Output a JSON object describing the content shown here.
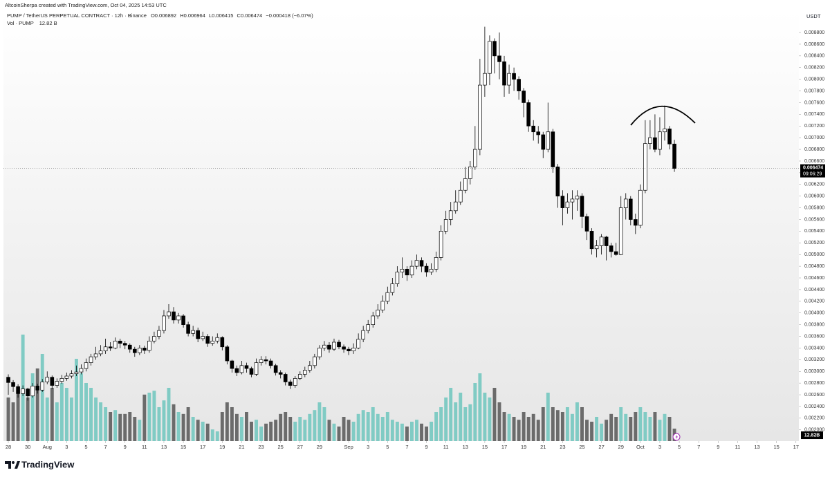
{
  "header": {
    "credit": "AltcoinSherpa created with TradingView.com, Oct 04, 2025 14:53 UTC",
    "symbol": "PUMP / TetherUS PERPETUAL CONTRACT · 12h · Binance",
    "open": "O0.006892",
    "high": "H0.006964",
    "low": "L0.006415",
    "close": "C0.006474",
    "change": "−0.000418 (−6.07%)",
    "volume_legend": "Vol · PUMP",
    "volume_value": "12.82 B"
  },
  "chart_data": {
    "type": "candlestick",
    "axis_unit": "USDT",
    "open": [
      0.0029,
      0.00281,
      0.00274,
      0.00262,
      0.0027,
      0.00258,
      0.00275,
      0.00268,
      0.00282,
      0.0029,
      0.00276,
      0.00283,
      0.00288,
      0.00292,
      0.00296,
      0.00299,
      0.00305,
      0.00315,
      0.00325,
      0.0033,
      0.00335,
      0.00342,
      0.0034,
      0.00352,
      0.00348,
      0.00345,
      0.00338,
      0.00332,
      0.0034,
      0.00336,
      0.00352,
      0.0036,
      0.0037,
      0.00395,
      0.00402,
      0.00388,
      0.00395,
      0.0038,
      0.00365,
      0.0037,
      0.00356,
      0.0036,
      0.00348,
      0.00352,
      0.00358,
      0.00342,
      0.00318,
      0.00305,
      0.00298,
      0.0031,
      0.00305,
      0.00295,
      0.00315,
      0.0032,
      0.00318,
      0.0031,
      0.00298,
      0.00295,
      0.00282,
      0.00276,
      0.00288,
      0.00295,
      0.00302,
      0.0031,
      0.00325,
      0.0034,
      0.00345,
      0.00338,
      0.0035,
      0.00342,
      0.00338,
      0.00335,
      0.0034,
      0.00355,
      0.0037,
      0.0038,
      0.00395,
      0.00405,
      0.0042,
      0.00435,
      0.0045,
      0.0047,
      0.00475,
      0.00465,
      0.0048,
      0.0049,
      0.0048,
      0.0047,
      0.00475,
      0.00495,
      0.0054,
      0.0056,
      0.00575,
      0.0059,
      0.0061,
      0.0063,
      0.0065,
      0.0068,
      0.0079,
      0.0081,
      0.00865,
      0.0084,
      0.0083,
      0.0079,
      0.0081,
      0.008,
      0.0078,
      0.0076,
      0.0072,
      0.0071,
      0.00705,
      0.0068,
      0.0071,
      0.0065,
      0.006,
      0.0058,
      0.0059,
      0.00595,
      0.006,
      0.00565,
      0.0054,
      0.0051,
      0.00515,
      0.0053,
      0.00515,
      0.00505,
      0.005,
      0.0058,
      0.00595,
      0.0056,
      0.0055,
      0.0061,
      0.0069,
      0.007,
      0.0068,
      0.0071,
      0.00715,
      0.006892
    ],
    "high": [
      0.00295,
      0.00285,
      0.00278,
      0.00276,
      0.00272,
      0.0028,
      0.00279,
      0.00287,
      0.003,
      0.00293,
      0.00288,
      0.00294,
      0.00298,
      0.00302,
      0.0031,
      0.00312,
      0.00322,
      0.0033,
      0.00342,
      0.00345,
      0.00356,
      0.0035,
      0.00358,
      0.00356,
      0.00352,
      0.00348,
      0.00342,
      0.00345,
      0.00344,
      0.0036,
      0.00368,
      0.00378,
      0.00405,
      0.00415,
      0.0041,
      0.004,
      0.00398,
      0.00385,
      0.00378,
      0.00375,
      0.00368,
      0.00364,
      0.0036,
      0.00365,
      0.0036,
      0.00345,
      0.0032,
      0.0031,
      0.00318,
      0.00315,
      0.00308,
      0.00322,
      0.00326,
      0.00326,
      0.00322,
      0.00313,
      0.00302,
      0.00298,
      0.00286,
      0.00292,
      0.003,
      0.00308,
      0.00318,
      0.0033,
      0.00345,
      0.00352,
      0.0035,
      0.00356,
      0.00354,
      0.00346,
      0.00342,
      0.00348,
      0.00365,
      0.00378,
      0.00388,
      0.00402,
      0.00415,
      0.0043,
      0.00445,
      0.0046,
      0.0048,
      0.00495,
      0.0048,
      0.0049,
      0.005,
      0.00495,
      0.00485,
      0.00485,
      0.00505,
      0.0055,
      0.00575,
      0.0059,
      0.0061,
      0.00625,
      0.0065,
      0.0066,
      0.0072,
      0.00835,
      0.0089,
      0.00875,
      0.0087,
      0.0088,
      0.0084,
      0.00825,
      0.0082,
      0.00805,
      0.00785,
      0.00765,
      0.0073,
      0.0072,
      0.0071,
      0.0076,
      0.00715,
      0.00655,
      0.0061,
      0.00605,
      0.0061,
      0.0061,
      0.00605,
      0.0057,
      0.00545,
      0.00525,
      0.00535,
      0.00532,
      0.0052,
      0.0052,
      0.006,
      0.00605,
      0.006,
      0.0057,
      0.0062,
      0.0073,
      0.0073,
      0.0074,
      0.00735,
      0.00755,
      0.0072,
      0.006964
    ],
    "low": [
      0.0026,
      0.00265,
      0.00255,
      0.00258,
      0.0025,
      0.00255,
      0.00262,
      0.00265,
      0.00278,
      0.0027,
      0.00272,
      0.00279,
      0.00284,
      0.00288,
      0.00292,
      0.00295,
      0.003,
      0.0031,
      0.0032,
      0.00326,
      0.0033,
      0.00335,
      0.00338,
      0.0034,
      0.00338,
      0.00332,
      0.00325,
      0.00328,
      0.0033,
      0.00332,
      0.00348,
      0.00355,
      0.00365,
      0.0039,
      0.00382,
      0.00382,
      0.00375,
      0.0036,
      0.0036,
      0.0035,
      0.00352,
      0.00342,
      0.00344,
      0.00348,
      0.00336,
      0.00312,
      0.00298,
      0.00292,
      0.00295,
      0.00298,
      0.0029,
      0.00292,
      0.0031,
      0.00312,
      0.00305,
      0.00293,
      0.00288,
      0.00276,
      0.0027,
      0.00272,
      0.00285,
      0.0029,
      0.00298,
      0.00305,
      0.0032,
      0.00335,
      0.00332,
      0.00335,
      0.00338,
      0.00332,
      0.00328,
      0.0033,
      0.00338,
      0.0035,
      0.00365,
      0.00375,
      0.0039,
      0.004,
      0.00415,
      0.0043,
      0.00445,
      0.0046,
      0.00455,
      0.0046,
      0.00475,
      0.0047,
      0.00462,
      0.00465,
      0.0047,
      0.0049,
      0.00535,
      0.0055,
      0.0057,
      0.00585,
      0.00605,
      0.0062,
      0.00645,
      0.0067,
      0.0077,
      0.0079,
      0.0081,
      0.008,
      0.0077,
      0.00775,
      0.0078,
      0.00765,
      0.00735,
      0.0071,
      0.00695,
      0.0069,
      0.00665,
      0.00675,
      0.0064,
      0.0058,
      0.0055,
      0.0057,
      0.0056,
      0.00575,
      0.00545,
      0.00525,
      0.005,
      0.00495,
      0.005,
      0.0049,
      0.00495,
      0.00498,
      0.00499,
      0.0056,
      0.0055,
      0.00535,
      0.00545,
      0.00605,
      0.0068,
      0.00675,
      0.0067,
      0.00695,
      0.0068,
      0.006415
    ],
    "close": [
      0.00281,
      0.00274,
      0.00262,
      0.0027,
      0.00258,
      0.00275,
      0.00268,
      0.00282,
      0.0029,
      0.00276,
      0.00283,
      0.00288,
      0.00292,
      0.00296,
      0.00299,
      0.00305,
      0.00315,
      0.00325,
      0.0033,
      0.00335,
      0.00342,
      0.0034,
      0.00352,
      0.00348,
      0.00345,
      0.00338,
      0.00332,
      0.0034,
      0.00336,
      0.00352,
      0.0036,
      0.0037,
      0.00395,
      0.00402,
      0.00388,
      0.00395,
      0.0038,
      0.00365,
      0.0037,
      0.00356,
      0.0036,
      0.00348,
      0.00352,
      0.00358,
      0.00342,
      0.00318,
      0.00305,
      0.00298,
      0.0031,
      0.00305,
      0.00295,
      0.00315,
      0.0032,
      0.00318,
      0.0031,
      0.00298,
      0.00295,
      0.00282,
      0.00276,
      0.00288,
      0.00295,
      0.00302,
      0.0031,
      0.00325,
      0.0034,
      0.00345,
      0.00338,
      0.0035,
      0.00342,
      0.00338,
      0.00335,
      0.0034,
      0.00355,
      0.0037,
      0.0038,
      0.00395,
      0.00405,
      0.0042,
      0.00435,
      0.0045,
      0.0047,
      0.00475,
      0.00465,
      0.0048,
      0.0049,
      0.0048,
      0.0047,
      0.00475,
      0.00495,
      0.0054,
      0.0056,
      0.00575,
      0.0059,
      0.0061,
      0.0063,
      0.0065,
      0.0068,
      0.0079,
      0.0081,
      0.00865,
      0.0084,
      0.0083,
      0.0079,
      0.0081,
      0.008,
      0.0078,
      0.0076,
      0.0072,
      0.0071,
      0.00705,
      0.0068,
      0.0071,
      0.0065,
      0.006,
      0.0058,
      0.0059,
      0.00595,
      0.006,
      0.00565,
      0.0054,
      0.0051,
      0.00515,
      0.0053,
      0.00515,
      0.00505,
      0.005,
      0.0058,
      0.00595,
      0.0056,
      0.0055,
      0.0061,
      0.0069,
      0.007,
      0.0068,
      0.0071,
      0.00715,
      0.006892,
      0.006474
    ],
    "volume": [
      45,
      40,
      55,
      110,
      45,
      70,
      75,
      90,
      45,
      55,
      40,
      60,
      55,
      45,
      85,
      70,
      60,
      55,
      45,
      40,
      35,
      30,
      32,
      28,
      28,
      30,
      25,
      22,
      48,
      50,
      52,
      35,
      42,
      55,
      38,
      30,
      28,
      35,
      25,
      22,
      20,
      18,
      12,
      10,
      30,
      40,
      35,
      28,
      25,
      30,
      20,
      22,
      15,
      18,
      20,
      22,
      28,
      30,
      25,
      20,
      25,
      22,
      28,
      32,
      40,
      35,
      22,
      18,
      15,
      25,
      22,
      20,
      28,
      32,
      30,
      35,
      28,
      25,
      30,
      22,
      20,
      18,
      15,
      20,
      22,
      18,
      15,
      20,
      30,
      35,
      45,
      55,
      40,
      50,
      35,
      38,
      60,
      70,
      50,
      45,
      55,
      40,
      30,
      28,
      25,
      22,
      30,
      25,
      28,
      22,
      35,
      50,
      35,
      32,
      30,
      35,
      28,
      40,
      35,
      22,
      20,
      25,
      18,
      22,
      28,
      25,
      35,
      28,
      25,
      30,
      35,
      30,
      25,
      30,
      22,
      28,
      25,
      12.82
    ],
    "up_color": "#ffffff",
    "down_color": "#000000",
    "border_color": "#000000",
    "volume_up_color": "#80cbc4",
    "volume_down_color": "#6b6b6b",
    "volume_ylim": [
      0,
      110
    ],
    "last_price_label": "0.006474",
    "countdown": "09:06:29",
    "volume_label": "12.82B",
    "grid": false,
    "ylim": [
      0.001808,
      0.009179
    ],
    "yticks": [
      {
        "value": 0.002,
        "label": "0.002000"
      },
      {
        "value": 0.0022,
        "label": "0.002200"
      },
      {
        "value": 0.0024,
        "label": "0.002400"
      },
      {
        "value": 0.0026,
        "label": "0.002600"
      },
      {
        "value": 0.0028,
        "label": "0.002800"
      },
      {
        "value": 0.003,
        "label": "0.003000"
      },
      {
        "value": 0.0032,
        "label": "0.003200"
      },
      {
        "value": 0.0034,
        "label": "0.003400"
      },
      {
        "value": 0.0036,
        "label": "0.003600"
      },
      {
        "value": 0.0038,
        "label": "0.003800"
      },
      {
        "value": 0.004,
        "label": "0.004000"
      },
      {
        "value": 0.0042,
        "label": "0.004200"
      },
      {
        "value": 0.0044,
        "label": "0.004400"
      },
      {
        "value": 0.0046,
        "label": "0.004600"
      },
      {
        "value": 0.0048,
        "label": "0.004800"
      },
      {
        "value": 0.005,
        "label": "0.005000"
      },
      {
        "value": 0.0052,
        "label": "0.005200"
      },
      {
        "value": 0.0054,
        "label": "0.005400"
      },
      {
        "value": 0.0056,
        "label": "0.005600"
      },
      {
        "value": 0.0058,
        "label": "0.005800"
      },
      {
        "value": 0.006,
        "label": "0.006000"
      },
      {
        "value": 0.0062,
        "label": "0.006200"
      },
      {
        "value": 0.0064,
        "label": "0.006400"
      },
      {
        "value": 0.0066,
        "label": "0.006600"
      },
      {
        "value": 0.0068,
        "label": "0.006800"
      },
      {
        "value": 0.007,
        "label": "0.007000"
      },
      {
        "value": 0.0072,
        "label": "0.007200"
      },
      {
        "value": 0.0074,
        "label": "0.007400"
      },
      {
        "value": 0.0076,
        "label": "0.007600"
      },
      {
        "value": 0.0078,
        "label": "0.007800"
      },
      {
        "value": 0.008,
        "label": "0.008000"
      },
      {
        "value": 0.0082,
        "label": "0.008200"
      },
      {
        "value": 0.0084,
        "label": "0.008400"
      },
      {
        "value": 0.0086,
        "label": "0.008600"
      },
      {
        "value": 0.0088,
        "label": "0.008800"
      }
    ],
    "xlim": [
      -1,
      162.6
    ],
    "xticks": [
      {
        "value": 0,
        "label": "28"
      },
      {
        "value": 4,
        "label": "30"
      },
      {
        "value": 8,
        "label": "Aug"
      },
      {
        "value": 12,
        "label": "3"
      },
      {
        "value": 16,
        "label": "5"
      },
      {
        "value": 20,
        "label": "7"
      },
      {
        "value": 24,
        "label": "9"
      },
      {
        "value": 28,
        "label": "11"
      },
      {
        "value": 32,
        "label": "13"
      },
      {
        "value": 36,
        "label": "15"
      },
      {
        "value": 40,
        "label": "17"
      },
      {
        "value": 44,
        "label": "19"
      },
      {
        "value": 48,
        "label": "21"
      },
      {
        "value": 52,
        "label": "23"
      },
      {
        "value": 56,
        "label": "25"
      },
      {
        "value": 60,
        "label": "27"
      },
      {
        "value": 64,
        "label": "29"
      },
      {
        "value": 70,
        "label": "Sep"
      },
      {
        "value": 74,
        "label": "3"
      },
      {
        "value": 78,
        "label": "5"
      },
      {
        "value": 82,
        "label": "7"
      },
      {
        "value": 86,
        "label": "9"
      },
      {
        "value": 90,
        "label": "11"
      },
      {
        "value": 94,
        "label": "13"
      },
      {
        "value": 98,
        "label": "15"
      },
      {
        "value": 102,
        "label": "17"
      },
      {
        "value": 106,
        "label": "19"
      },
      {
        "value": 110,
        "label": "21"
      },
      {
        "value": 114,
        "label": "23"
      },
      {
        "value": 118,
        "label": "25"
      },
      {
        "value": 122,
        "label": "27"
      },
      {
        "value": 126,
        "label": "29"
      },
      {
        "value": 130,
        "label": "Oct"
      },
      {
        "value": 134,
        "label": "3"
      },
      {
        "value": 138,
        "label": "5"
      },
      {
        "value": 142,
        "label": "7"
      },
      {
        "value": 146,
        "label": "9"
      },
      {
        "value": 150,
        "label": "11"
      },
      {
        "value": 154,
        "label": "13"
      },
      {
        "value": 158,
        "label": "15"
      },
      {
        "value": 162,
        "label": "17"
      }
    ]
  },
  "footer": {
    "logo": "TradingView"
  }
}
